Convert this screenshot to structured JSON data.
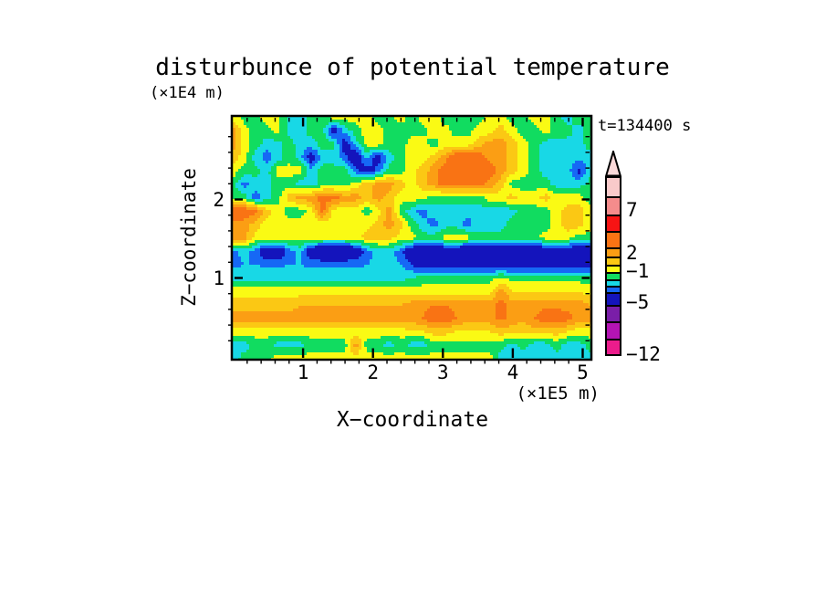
{
  "figure": {
    "title": "disturbunce of potential temperature",
    "time_label": "t=134400 s",
    "x_axis": {
      "label": "X−coordinate",
      "unit": "(×1E5 m)",
      "major_ticks": [
        1,
        2,
        3,
        4,
        5
      ],
      "minor_step": 0.2,
      "max": 5.1
    },
    "z_axis": {
      "label": "Z−coordinate",
      "unit": "(×1E4 m)",
      "major_ticks": [
        1,
        2
      ],
      "minor_step": 0.2,
      "max": 3.05
    }
  },
  "colorbar": {
    "arrow_color": "#FBD9D9",
    "segments": [
      {
        "color": "#F9CACA",
        "height": 20
      },
      {
        "color": "#F58C8C",
        "height": 20
      },
      {
        "color": "#F71414",
        "height": 18
      },
      {
        "color": "#F97314",
        "height": 18
      },
      {
        "color": "#FB9E14",
        "height": 10
      },
      {
        "color": "#FBC814",
        "height": 9
      },
      {
        "color": "#FAFA14",
        "height": 8
      },
      {
        "color": "#11DC60",
        "height": 8
      },
      {
        "color": "#18D8E6",
        "height": 7
      },
      {
        "color": "#1668F5",
        "height": 7
      },
      {
        "color": "#1414BC",
        "height": 14
      },
      {
        "color": "#7A1EA8",
        "height": 18
      },
      {
        "color": "#B414B4",
        "height": 19
      },
      {
        "color": "#EB1C8C",
        "height": 17
      }
    ],
    "labels": [
      {
        "text": "7",
        "y": 230
      },
      {
        "text": "2",
        "y": 277
      },
      {
        "text": "−1",
        "y": 297
      },
      {
        "text": "−5",
        "y": 331
      },
      {
        "text": "−12",
        "y": 388
      }
    ]
  },
  "chart_data": {
    "type": "heatmap",
    "title": "disturbunce of potential temperature",
    "xlabel": "X−coordinate",
    "ylabel": "Z−coordinate",
    "x_unit": "(×1E5 m)",
    "y_unit": "(×1E4 m)",
    "annotation": "t=134400 s",
    "x_range": [
      0,
      5.1
    ],
    "z_range": [
      0,
      3.05
    ],
    "x_ticks": [
      1,
      2,
      3,
      4,
      5
    ],
    "z_ticks": [
      1,
      2
    ],
    "levels": [
      -12,
      -9,
      -7,
      -5,
      -3,
      -2,
      -1,
      0,
      1,
      2,
      3,
      5,
      7,
      9,
      11
    ],
    "palette": [
      "#EB1C8C",
      "#B414B4",
      "#7A1EA8",
      "#1414BC",
      "#1668F5",
      "#18D8E6",
      "#11DC60",
      "#FAFA14",
      "#FBC814",
      "#FB9E14",
      "#F97314",
      "#F71414",
      "#F58C8C",
      "#F9CACA"
    ],
    "grid_rows_top_to_bottom": true,
    "grid": [
      [
        0.5,
        -0.5,
        -0.5,
        0.5,
        0.5,
        -1.5,
        -1.5,
        -0.5,
        -0.5,
        0.5,
        0.5,
        0.5,
        0.5,
        -0.5,
        -0.5,
        0.5,
        -0.5,
        0.5,
        0.5,
        -0.5,
        -0.5,
        -0.5,
        -0.5,
        0.5,
        0.5,
        -0.5,
        -0.5,
        0.5,
        0.5,
        -0.5,
        -1.5,
        -0.5,
        -0.5
      ],
      [
        2.5,
        0.5,
        -0.5,
        -0.5,
        0.5,
        -1.5,
        -1.5,
        -0.5,
        -0.5,
        -4,
        -1.5,
        -0.5,
        0.5,
        0.5,
        -0.5,
        -0.5,
        -0.5,
        -0.5,
        0.5,
        0.5,
        -0.5,
        -0.5,
        0.5,
        0.5,
        1.5,
        0.5,
        -0.5,
        -0.5,
        0.5,
        -0.5,
        -0.5,
        -1.5,
        -0.5
      ],
      [
        2.5,
        0.5,
        -0.5,
        -1.5,
        -1.5,
        -0.5,
        -1.5,
        -1.5,
        -0.5,
        -0.5,
        -4,
        -1.5,
        0.5,
        0.5,
        -0.5,
        -0.5,
        0.5,
        0.5,
        -0.5,
        0.5,
        0.5,
        0.5,
        1.5,
        2.5,
        2.5,
        1.5,
        0.5,
        -0.5,
        -1.5,
        -1.5,
        -1.5,
        -1.5,
        -0.5
      ],
      [
        1.5,
        0.5,
        -1.5,
        -2.5,
        -1.5,
        -0.5,
        -1.5,
        -4,
        -1.5,
        -1.5,
        -2.5,
        -4.5,
        -1.5,
        -4,
        -1.5,
        -0.5,
        0.5,
        0.5,
        1.5,
        2.5,
        4,
        4,
        4,
        2.5,
        2.5,
        1.5,
        0.5,
        -0.5,
        -1.5,
        -1.5,
        -1.5,
        -1.5,
        -1.5
      ],
      [
        0.5,
        -0.5,
        -0.5,
        -1.5,
        0.5,
        0.5,
        0.5,
        -1.5,
        -0.5,
        -0.5,
        -0.5,
        -2.5,
        -4,
        -2.5,
        -0.5,
        -0.5,
        0.5,
        1.5,
        2.5,
        4,
        4.5,
        4.5,
        4.5,
        4,
        2.5,
        1.5,
        0.5,
        -0.5,
        -1.5,
        -1.5,
        -1.5,
        -3.5,
        -1.5
      ],
      [
        -0.5,
        -2.5,
        -1.5,
        -1.5,
        -0.5,
        -0.5,
        -1.5,
        -1.5,
        -0.5,
        -0.5,
        -0.5,
        0.5,
        1.5,
        2.5,
        2.5,
        1.5,
        0.5,
        1.5,
        2.5,
        3.5,
        3.5,
        3.5,
        3.5,
        2.5,
        1.5,
        -0.5,
        -0.5,
        -0.5,
        -0.5,
        -1.5,
        -1.5,
        -1.5,
        -0.5
      ],
      [
        -0.5,
        -0.5,
        -2.5,
        -1.5,
        -0.5,
        1.5,
        2.5,
        2.5,
        3.5,
        3.5,
        2.5,
        2.5,
        1.5,
        2.5,
        1.5,
        0.5,
        0.5,
        0.5,
        -0.5,
        -0.5,
        -0.5,
        -0.5,
        -0.5,
        0.5,
        0.5,
        1.5,
        0.5,
        0.5,
        1.5,
        0.5,
        0.5,
        0.5,
        -0.5
      ],
      [
        4,
        4,
        3.5,
        1.5,
        0.5,
        -0.5,
        -0.5,
        0.5,
        3.5,
        0.5,
        0.5,
        0.5,
        -0.5,
        0.5,
        2.5,
        -0.5,
        -1.5,
        -2.5,
        -1.5,
        -1.5,
        -1.5,
        -1.5,
        -1.5,
        -1.5,
        -1.5,
        -1.5,
        -0.5,
        -0.5,
        -0.5,
        0.5,
        1.5,
        1.5,
        0.5
      ],
      [
        2.5,
        2.5,
        1.5,
        0.5,
        0.5,
        0.5,
        0.5,
        0.5,
        0.5,
        0.5,
        0.5,
        0.5,
        0.5,
        1.5,
        2.5,
        1.5,
        -0.5,
        -1.5,
        -2.5,
        -1.5,
        -1.5,
        -2.5,
        -1.5,
        -1.5,
        -1.5,
        -0.5,
        -0.5,
        -0.5,
        -0.5,
        0.5,
        1.5,
        1.5,
        0.5
      ],
      [
        2.5,
        2.5,
        0.5,
        0.5,
        0.5,
        0.5,
        0.5,
        0.5,
        0.5,
        0.5,
        0.5,
        0.5,
        1.5,
        1.5,
        1.5,
        0.5,
        0.5,
        -0.5,
        -0.5,
        0.5,
        0.5,
        0.5,
        -0.5,
        -0.5,
        -0.5,
        -0.5,
        -0.5,
        -0.5,
        0.5,
        0.5,
        0.5,
        -0.5,
        -0.5
      ],
      [
        -2.5,
        -1.5,
        -2.5,
        -4.5,
        -4.5,
        -2.5,
        -1.5,
        -4.5,
        -5,
        -5,
        -5,
        -4.5,
        -2.5,
        -1.5,
        -1.5,
        -2.5,
        -4.5,
        -5,
        -5,
        -4.5,
        -4.5,
        -5,
        -5,
        -4.5,
        -4.5,
        -4.5,
        -4.5,
        -4.5,
        -4.5,
        -4.5,
        -4.5,
        -4.5,
        -4.5
      ],
      [
        -2.2,
        -2,
        -2,
        -2.2,
        -2.2,
        -2,
        -2,
        -2.2,
        -2.2,
        -2.2,
        -2.2,
        -2.2,
        -2,
        -1.8,
        -1.8,
        -2,
        -3,
        -4,
        -4,
        -4,
        -4,
        -4,
        -4,
        -4,
        -4,
        -4,
        -4,
        -4,
        -4,
        -4,
        -4,
        -4,
        -4
      ],
      [
        -1.5,
        -1.5,
        -1.5,
        -1.5,
        -1.5,
        -1.5,
        -1.5,
        -1.5,
        -1.5,
        -1.5,
        -1.5,
        -1.5,
        -1.5,
        -1.5,
        -1.5,
        -1.5,
        -1,
        -0.5,
        -0.5,
        -0.5,
        -0.5,
        -0.5,
        -0.5,
        -0.5,
        0.3,
        -0.5,
        -0.5,
        -0.5,
        -0.5,
        -0.5,
        -0.5,
        -0.5,
        -0.5
      ],
      [
        0.5,
        0.5,
        0.5,
        0.5,
        0.5,
        0.5,
        0.5,
        0.5,
        0.5,
        0.5,
        0.5,
        0.5,
        0.5,
        0.5,
        0.5,
        0.5,
        0.5,
        0.5,
        0.5,
        0.5,
        0.5,
        0.5,
        0.5,
        0.5,
        2.5,
        1,
        1,
        1,
        1,
        1,
        1,
        1,
        0.5
      ],
      [
        1.5,
        1.5,
        1.5,
        1.5,
        1.5,
        1.5,
        2,
        2,
        2,
        2,
        2,
        2,
        2,
        2,
        2,
        2,
        2.5,
        2.5,
        3,
        3,
        2.5,
        2.5,
        2.5,
        2.5,
        3.5,
        2.5,
        2.5,
        2.5,
        2.5,
        2.5,
        2.5,
        2.5,
        2
      ],
      [
        2.5,
        2.5,
        2.5,
        2.5,
        2.5,
        2.5,
        2.5,
        2.5,
        2.5,
        2.5,
        2.5,
        2.5,
        2.5,
        2.5,
        2.5,
        2.5,
        2.5,
        3,
        4,
        4,
        3,
        2.5,
        2.5,
        2.5,
        3.5,
        2.5,
        2.5,
        3,
        4,
        4,
        3.5,
        2.5,
        2.5
      ],
      [
        0.5,
        0.5,
        0.5,
        0.5,
        0.5,
        0.5,
        0.5,
        0.5,
        0.5,
        0.5,
        0.5,
        0.5,
        0.5,
        0.5,
        0.5,
        0.5,
        1,
        1,
        1.5,
        1.5,
        1,
        1,
        1,
        1,
        1.5,
        1.5,
        1,
        1.5,
        1.5,
        1.5,
        1,
        0.5,
        0.5
      ],
      [
        -1.5,
        -1.5,
        -0.5,
        -0.5,
        -1.5,
        -1.5,
        -1.5,
        -0.5,
        -0.5,
        -0.5,
        -0.5,
        2.5,
        -0.5,
        -0.5,
        -1.5,
        -0.5,
        -1.5,
        -1.5,
        -0.5,
        -0.5,
        -0.5,
        -0.5,
        -0.5,
        -0.5,
        -0.5,
        -1.5,
        -0.5,
        -1.5,
        -1.5,
        -0.5,
        -1.5,
        -1.5,
        -0.5
      ],
      [
        -1.5,
        -0.5,
        -0.5,
        -0.5,
        0.5,
        0.5,
        0.5,
        0.5,
        0.5,
        0.5,
        0.5,
        0.5,
        0.5,
        0.5,
        0.5,
        0.5,
        0.5,
        0.5,
        0.5,
        0.5,
        0.5,
        0.5,
        0.5,
        0.5,
        -1.5,
        -1.5,
        -1.5,
        -1.5,
        -1.5,
        -1.5,
        -1.5,
        -1.5,
        -1.5
      ]
    ]
  }
}
